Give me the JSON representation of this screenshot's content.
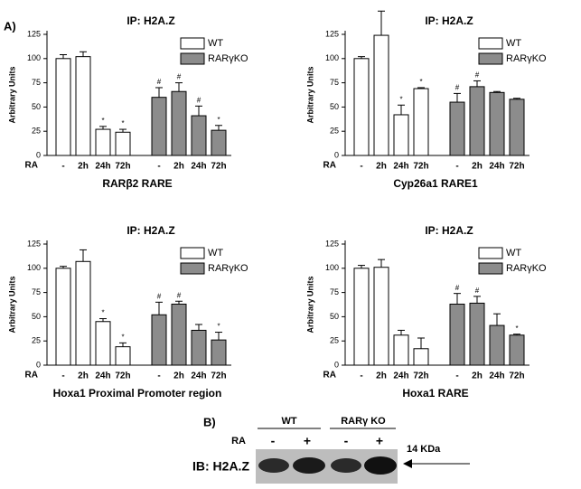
{
  "panel_label": "A)",
  "chart_data": [
    {
      "type": "bar",
      "title": "IP: H2A.Z",
      "x_title": "RARβ2 RARE",
      "y_title": "Arbitrary Units",
      "category_label": "RA",
      "categories": [
        "-",
        "2h",
        "24h",
        "72h",
        "-",
        "2h",
        "24h",
        "72h"
      ],
      "ylim": [
        0,
        125
      ],
      "yticks": [
        0,
        25,
        50,
        75,
        100,
        125
      ],
      "series": [
        {
          "name": "WT",
          "color": "#ffffff",
          "values": [
            100,
            102,
            27,
            24,
            null,
            null,
            null,
            null
          ],
          "errors": [
            4,
            5,
            3,
            3,
            null,
            null,
            null,
            null
          ],
          "significance": [
            null,
            null,
            "*",
            "*",
            null,
            null,
            null,
            null
          ]
        },
        {
          "name": "RARγKO",
          "color": "#8c8c8c",
          "values": [
            null,
            null,
            null,
            null,
            60,
            66,
            41,
            26
          ],
          "errors": [
            null,
            null,
            null,
            null,
            10,
            9,
            10,
            5
          ],
          "significance": [
            null,
            null,
            null,
            null,
            "#",
            "#",
            "#",
            "*"
          ]
        }
      ]
    },
    {
      "type": "bar",
      "title": "IP: H2A.Z",
      "x_title": "Cyp26a1 RARE1",
      "y_title": "Arbitrary Units",
      "category_label": "RA",
      "categories": [
        "-",
        "2h",
        "24h",
        "72h",
        "-",
        "2h",
        "24h",
        "72h"
      ],
      "ylim": [
        0,
        125
      ],
      "yticks": [
        0,
        25,
        50,
        75,
        100,
        125
      ],
      "series": [
        {
          "name": "WT",
          "color": "#ffffff",
          "values": [
            100,
            124,
            42,
            69,
            null,
            null,
            null,
            null
          ],
          "errors": [
            2,
            25,
            10,
            1,
            null,
            null,
            null,
            null
          ],
          "significance": [
            null,
            null,
            "*",
            "*",
            null,
            null,
            null,
            null
          ]
        },
        {
          "name": "RARγKO",
          "color": "#8c8c8c",
          "values": [
            null,
            null,
            null,
            null,
            55,
            71,
            65,
            58
          ],
          "errors": [
            null,
            null,
            null,
            null,
            9,
            6,
            1,
            1
          ],
          "significance": [
            null,
            null,
            null,
            null,
            "#",
            "#",
            null,
            null
          ]
        }
      ]
    },
    {
      "type": "bar",
      "title": "IP: H2A.Z",
      "x_title": "Hoxa1 Proximal Promoter region",
      "y_title": "Arbitrary Units",
      "category_label": "RA",
      "categories": [
        "-",
        "2h",
        "24h",
        "72h",
        "-",
        "2h",
        "24h",
        "72h"
      ],
      "ylim": [
        0,
        125
      ],
      "yticks": [
        0,
        25,
        50,
        75,
        100,
        125
      ],
      "series": [
        {
          "name": "WT",
          "color": "#ffffff",
          "values": [
            100,
            107,
            45,
            19,
            null,
            null,
            null,
            null
          ],
          "errors": [
            2,
            12,
            3,
            4,
            null,
            null,
            null,
            null
          ],
          "significance": [
            null,
            null,
            "*",
            "*",
            null,
            null,
            null,
            null
          ]
        },
        {
          "name": "RARγKO",
          "color": "#8c8c8c",
          "values": [
            null,
            null,
            null,
            null,
            52,
            63,
            36,
            26
          ],
          "errors": [
            null,
            null,
            null,
            null,
            13,
            3,
            6,
            8
          ],
          "significance": [
            null,
            null,
            null,
            null,
            "#",
            "#",
            null,
            "*"
          ]
        }
      ]
    },
    {
      "type": "bar",
      "title": "IP: H2A.Z",
      "x_title": "Hoxa1 RARE",
      "y_title": "Arbitrary Units",
      "category_label": "RA",
      "categories": [
        "-",
        "2h",
        "24h",
        "72h",
        "-",
        "2h",
        "24h",
        "72h"
      ],
      "ylim": [
        0,
        125
      ],
      "yticks": [
        0,
        25,
        50,
        75,
        100,
        125
      ],
      "series": [
        {
          "name": "WT",
          "color": "#ffffff",
          "values": [
            100,
            101,
            31,
            17,
            null,
            null,
            null,
            null
          ],
          "errors": [
            3,
            8,
            5,
            11,
            null,
            null,
            null,
            null
          ],
          "significance": [
            null,
            null,
            null,
            null,
            null,
            null,
            null,
            null
          ]
        },
        {
          "name": "RARγKO",
          "color": "#8c8c8c",
          "values": [
            null,
            null,
            null,
            null,
            63,
            64,
            41,
            31
          ],
          "errors": [
            null,
            null,
            null,
            null,
            11,
            7,
            12,
            1
          ],
          "significance": [
            null,
            null,
            null,
            null,
            "#",
            "#",
            null,
            "*"
          ]
        }
      ]
    }
  ],
  "blot": {
    "panel_label": "B)",
    "groups": [
      "WT",
      "RARγ KO"
    ],
    "treatment_label": "RA",
    "treatments": [
      "-",
      "+",
      "-",
      "+"
    ],
    "size_label": "14 KDa",
    "antibody": "IB: H2A.Z"
  }
}
